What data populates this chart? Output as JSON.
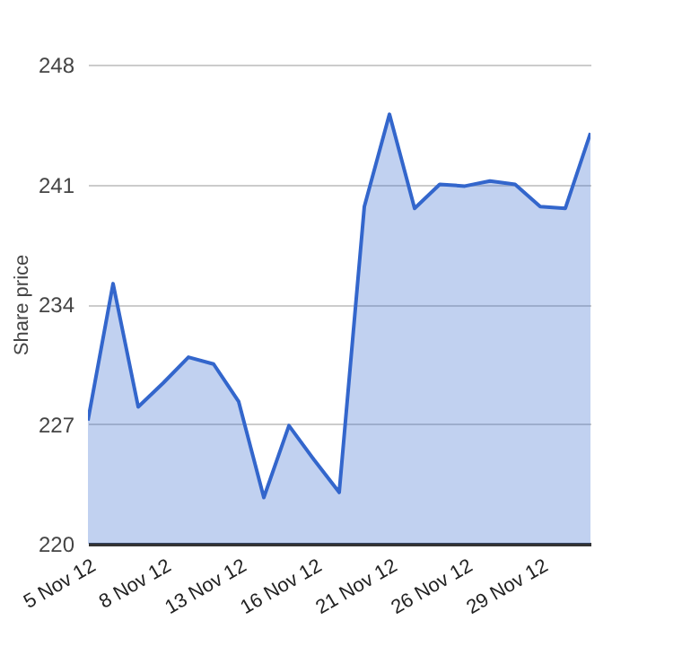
{
  "chart_data": {
    "type": "area",
    "ylabel": "Share price",
    "categories": [
      "5 Nov 12",
      null,
      null,
      "8 Nov 12",
      null,
      null,
      "13 Nov 12",
      null,
      null,
      "16 Nov 12",
      null,
      null,
      "21 Nov 12",
      null,
      null,
      "26 Nov 12",
      null,
      null,
      "29 Nov 12",
      null,
      null
    ],
    "series": [
      {
        "color": "#3366cc",
        "values": [
          227.2,
          235.2,
          228.0,
          229.4,
          230.9,
          230.5,
          228.3,
          222.7,
          226.9,
          224.9,
          223.0,
          239.7,
          245.1,
          239.6,
          241.0,
          240.9,
          241.2,
          241.0,
          239.7,
          239.6,
          244.0
        ]
      }
    ],
    "ylim": [
      220,
      248
    ],
    "yticks": [
      220,
      227,
      234,
      241,
      248
    ],
    "grid": "y"
  }
}
